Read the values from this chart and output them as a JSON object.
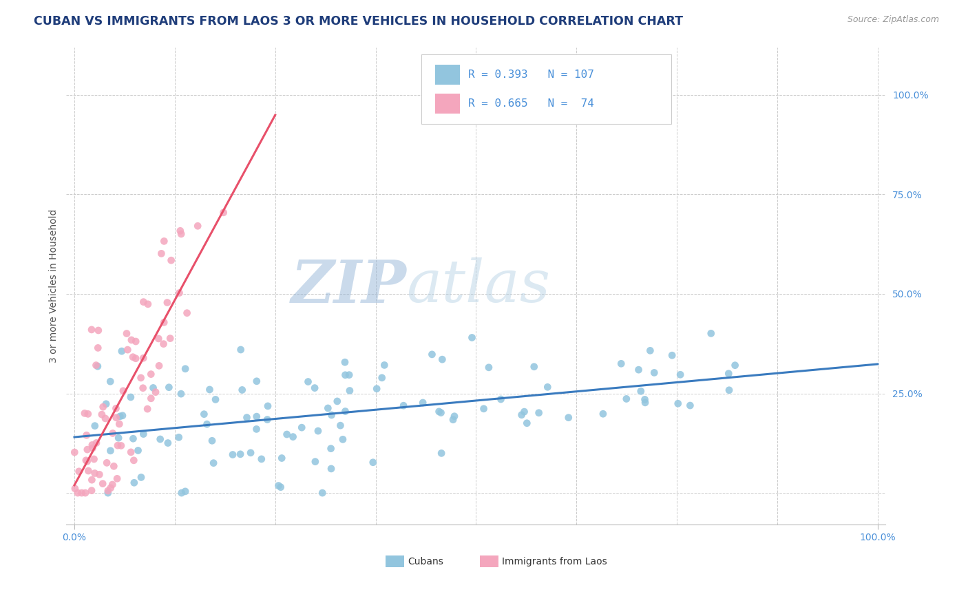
{
  "title": "CUBAN VS IMMIGRANTS FROM LAOS 3 OR MORE VEHICLES IN HOUSEHOLD CORRELATION CHART",
  "source": "Source: ZipAtlas.com",
  "ylabel": "3 or more Vehicles in Household",
  "watermark_zip": "ZIP",
  "watermark_atlas": "atlas",
  "legend_blue_R": "R = 0.393",
  "legend_blue_N": "N = 107",
  "legend_pink_R": "R = 0.665",
  "legend_pink_N": "N =  74",
  "legend_label_blue": "Cubans",
  "legend_label_pink": "Immigrants from Laos",
  "blue_color": "#92C5DE",
  "pink_color": "#F4A6BD",
  "blue_line_color": "#3A7BBF",
  "pink_line_color": "#E8506A",
  "title_color": "#1F3D7A",
  "axis_label_color": "#4A90D9",
  "background_color": "#FFFFFF",
  "grid_color": "#CCCCCC",
  "seed": 99,
  "blue_n": 107,
  "pink_n": 74,
  "blue_R": 0.393,
  "pink_R": 0.665
}
